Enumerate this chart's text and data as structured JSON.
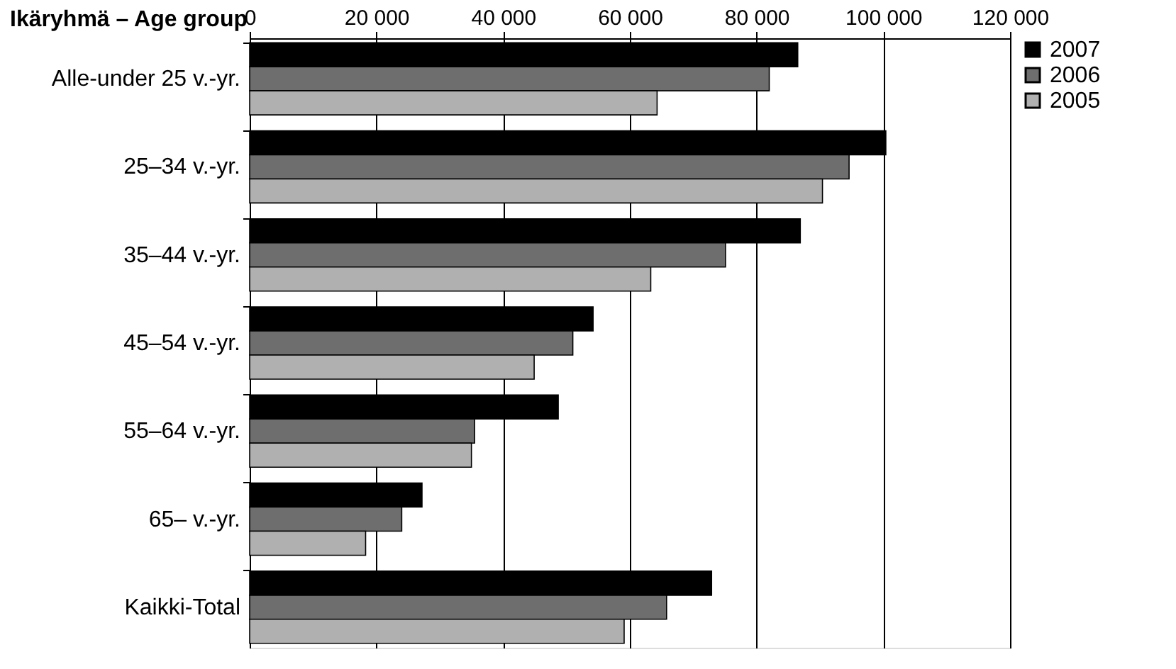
{
  "chart_data": {
    "type": "bar",
    "orientation": "horizontal",
    "ylabel": "Ikäryhmä – Age group",
    "categories": [
      "Alle-under 25 v.-yr.",
      "25–34 v.-yr.",
      "35–44 v.-yr.",
      "45–54 v.-yr.",
      "55–64 v.-yr.",
      "65– v.-yr.",
      "Kaikki-Total"
    ],
    "series": [
      {
        "name": "2007",
        "color": "#000000",
        "values": [
          86500,
          100400,
          86900,
          54200,
          48700,
          27200,
          72900
        ]
      },
      {
        "name": "2006",
        "color": "#6e6e6e",
        "values": [
          82000,
          94600,
          75100,
          51000,
          35500,
          24000,
          65800
        ]
      },
      {
        "name": "2005",
        "color": "#b0b0b0",
        "values": [
          64300,
          90400,
          63300,
          44900,
          35000,
          18300,
          59100
        ]
      }
    ],
    "xlim": [
      0,
      120000
    ],
    "xticks": [
      {
        "value": 0,
        "label": "0"
      },
      {
        "value": 20000,
        "label": "20 000"
      },
      {
        "value": 40000,
        "label": "40 000"
      },
      {
        "value": 60000,
        "label": "60 000"
      },
      {
        "value": 80000,
        "label": "80 000"
      },
      {
        "value": 100000,
        "label": "100 000"
      },
      {
        "value": 120000,
        "label": "120 000"
      }
    ],
    "grid": "x",
    "legend": "right"
  }
}
